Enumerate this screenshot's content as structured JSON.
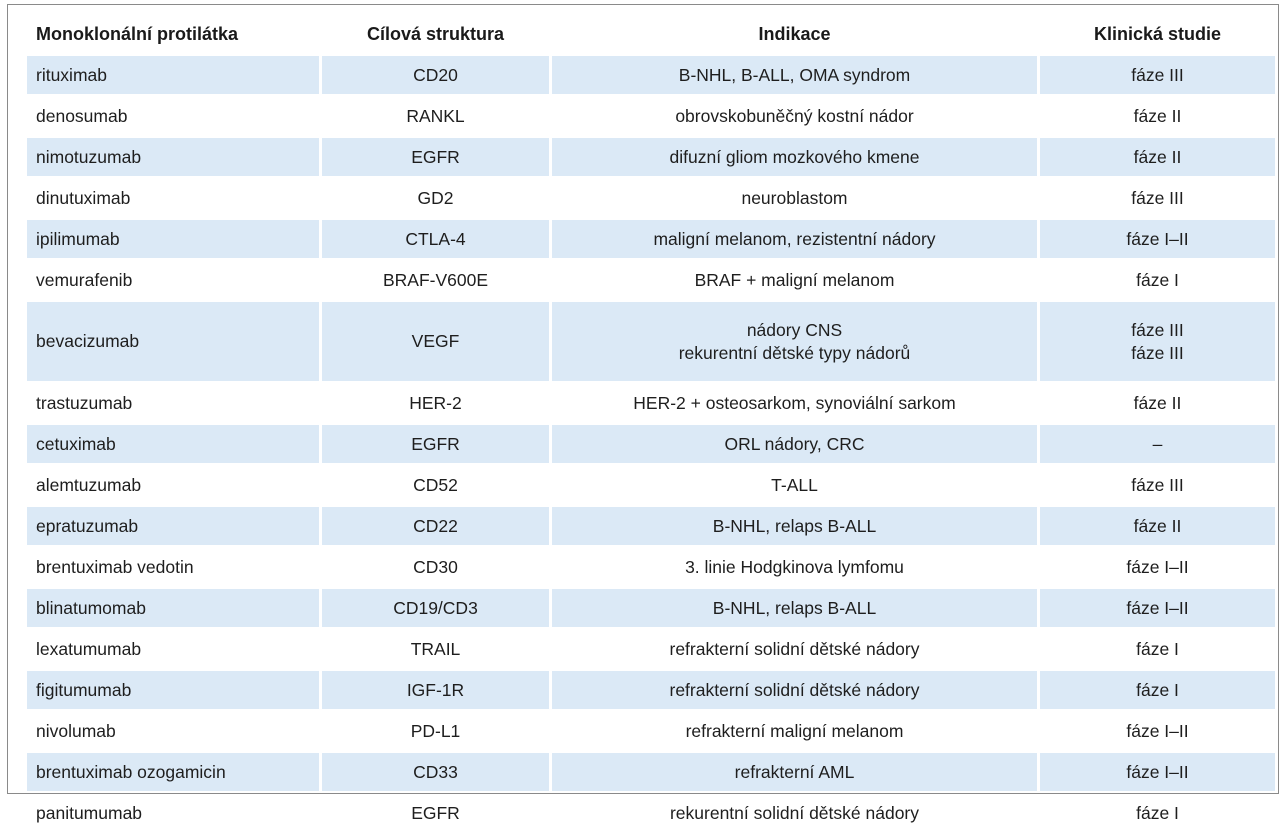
{
  "table": {
    "headers": [
      "Monoklonální protilátka",
      "Cílová struktura",
      "Indikace",
      "Klinická studie"
    ],
    "rows": [
      {
        "antibody": "rituximab",
        "target": "CD20",
        "indication": [
          "B-NHL, B-ALL, OMA syndrom"
        ],
        "study": [
          "fáze III"
        ]
      },
      {
        "antibody": "denosumab",
        "target": "RANKL",
        "indication": [
          "obrovskobuněčný kostní nádor"
        ],
        "study": [
          "fáze II"
        ]
      },
      {
        "antibody": "nimotuzumab",
        "target": "EGFR",
        "indication": [
          "difuzní gliom mozkového kmene"
        ],
        "study": [
          "fáze II"
        ]
      },
      {
        "antibody": "dinutuximab",
        "target": "GD2",
        "indication": [
          "neuroblastom"
        ],
        "study": [
          "fáze III"
        ]
      },
      {
        "antibody": "ipilimumab",
        "target": "CTLA-4",
        "indication": [
          "maligní melanom, rezistentní nádory"
        ],
        "study": [
          "fáze I–II"
        ]
      },
      {
        "antibody": "vemurafenib",
        "target": "BRAF-V600E",
        "indication": [
          "BRAF + maligní melanom"
        ],
        "study": [
          "fáze I"
        ]
      },
      {
        "antibody": "bevacizumab",
        "target": "VEGF",
        "indication": [
          "nádory CNS",
          "rekurentní dětské typy nádorů"
        ],
        "study": [
          "fáze III",
          "fáze III"
        ]
      },
      {
        "antibody": "trastuzumab",
        "target": "HER-2",
        "indication": [
          "HER-2 + osteosarkom, synoviální sarkom"
        ],
        "study": [
          "fáze II"
        ]
      },
      {
        "antibody": "cetuximab",
        "target": "EGFR",
        "indication": [
          "ORL nádory, CRC"
        ],
        "study": [
          "–"
        ]
      },
      {
        "antibody": "alemtuzumab",
        "target": "CD52",
        "indication": [
          "T-ALL"
        ],
        "study": [
          "fáze III"
        ]
      },
      {
        "antibody": "epratuzumab",
        "target": "CD22",
        "indication": [
          "B-NHL, relaps B-ALL"
        ],
        "study": [
          "fáze II"
        ]
      },
      {
        "antibody": "brentuximab vedotin",
        "target": "CD30",
        "indication": [
          "3. linie Hodgkinova lymfomu"
        ],
        "study": [
          "fáze I–II"
        ]
      },
      {
        "antibody": "blinatumomab",
        "target": "CD19/CD3",
        "indication": [
          "B-NHL, relaps B-ALL"
        ],
        "study": [
          "fáze I–II"
        ]
      },
      {
        "antibody": "lexatumumab",
        "target": "TRAIL",
        "indication": [
          "refrakterní solidní dětské nádory"
        ],
        "study": [
          "fáze I"
        ]
      },
      {
        "antibody": "figitumumab",
        "target": "IGF-1R",
        "indication": [
          "refrakterní solidní dětské nádory"
        ],
        "study": [
          "fáze I"
        ]
      },
      {
        "antibody": "nivolumab",
        "target": "PD-L1",
        "indication": [
          "refrakterní maligní melanom"
        ],
        "study": [
          "fáze I–II"
        ]
      },
      {
        "antibody": "brentuximab ozogamicin",
        "target": "CD33",
        "indication": [
          "refrakterní AML"
        ],
        "study": [
          "fáze I–II"
        ]
      },
      {
        "antibody": "panitumumab",
        "target": "EGFR",
        "indication": [
          "rekurentní solidní dětské nádory"
        ],
        "study": [
          "fáze I"
        ]
      }
    ]
  },
  "colors": {
    "shaded_row": "#dbe9f6",
    "text": "#1e1e1e",
    "border": "#8a8a8a"
  }
}
